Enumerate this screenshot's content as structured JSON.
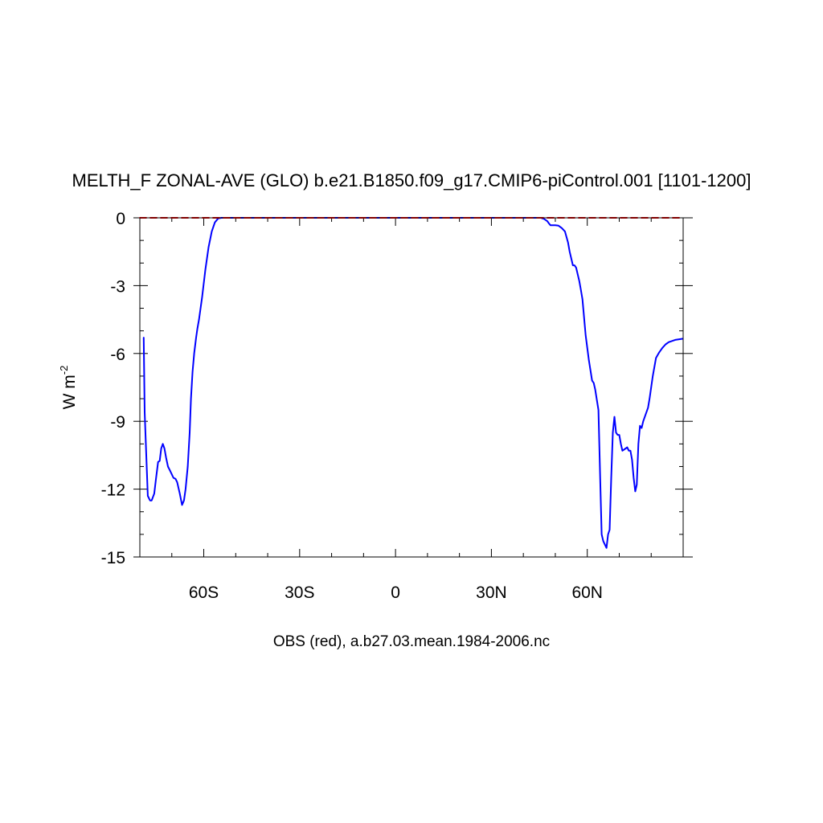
{
  "chart_data": {
    "type": "line",
    "title": "MELTH_F ZONAL-AVE (GLO) b.e21.B1850.f09_g17.CMIP6-piControl.001 [1101-1200]",
    "subtitle": "OBS (red), a.b27.03.mean.1984-2006.nc",
    "ylabel": "W m",
    "ylabel_exponent": "-2",
    "xlim": [
      -80,
      90
    ],
    "ylim": [
      -15,
      0
    ],
    "x_ticks": [
      {
        "value": -60,
        "label": "60S"
      },
      {
        "value": -30,
        "label": "30S"
      },
      {
        "value": 0,
        "label": "0"
      },
      {
        "value": 30,
        "label": "30N"
      },
      {
        "value": 60,
        "label": "60N"
      }
    ],
    "y_ticks": [
      {
        "value": 0,
        "label": "0"
      },
      {
        "value": -3,
        "label": "-3"
      },
      {
        "value": -6,
        "label": "-6"
      },
      {
        "value": -9,
        "label": "-9"
      },
      {
        "value": -12,
        "label": "-12"
      },
      {
        "value": -15,
        "label": "-15"
      }
    ],
    "series": [
      {
        "color": "#0000ff",
        "dashed": false,
        "x": [
          -78.8,
          -78.5,
          -77.5,
          -76.8,
          -76.3,
          -75.5,
          -75.0,
          -74.3,
          -73.8,
          -73.3,
          -72.8,
          -72.3,
          -71.8,
          -71.2,
          -70.5,
          -69.5,
          -68.8,
          -68.3,
          -67.5,
          -66.8,
          -66.2,
          -65.7,
          -65.0,
          -64.4,
          -64.0,
          -63.5,
          -63.0,
          -62.4,
          -62.0,
          -61.5,
          -60.5,
          -59.5,
          -58.5,
          -57.5,
          -56.5,
          -55.5,
          -54.5,
          -54.0,
          -53.5,
          -53.0,
          -52.5,
          -52.0,
          -51.5,
          -51.0,
          -50.0,
          -40.0,
          0.0,
          40.0,
          45.5,
          46.5,
          47.5,
          48.0,
          48.5,
          50.0,
          51.0,
          52.0,
          53.0,
          54.0,
          54.5,
          55.5,
          56.0,
          56.5,
          57.5,
          58.0,
          58.5,
          59.5,
          60.5,
          61.5,
          62.0,
          62.5,
          63.5,
          64.0,
          64.5,
          65.0,
          66.0,
          66.5,
          67.0,
          67.5,
          68.0,
          68.5,
          69.0,
          69.5,
          70.0,
          70.5,
          71.0,
          72.0,
          72.5,
          73.0,
          73.5,
          74.0,
          74.5,
          75.0,
          75.5,
          76.0,
          76.5,
          77.0,
          77.5,
          78.5,
          79.0,
          79.5,
          80.0,
          80.5,
          81.5,
          82.5,
          83.5,
          84.5,
          85.5,
          86.5,
          87.5,
          89.8
        ],
        "y": [
          -5.3,
          -8.6,
          -12.3,
          -12.5,
          -12.5,
          -12.2,
          -11.6,
          -10.8,
          -10.75,
          -10.2,
          -10.0,
          -10.2,
          -10.6,
          -11.0,
          -11.2,
          -11.5,
          -11.55,
          -11.7,
          -12.2,
          -12.7,
          -12.5,
          -12.0,
          -11.0,
          -9.5,
          -8.0,
          -6.8,
          -6.0,
          -5.3,
          -4.9,
          -4.5,
          -3.5,
          -2.3,
          -1.3,
          -0.6,
          -0.2,
          -0.03,
          0.0,
          0.0,
          0.0,
          0.0,
          0.0,
          0.0,
          0.0,
          0.0,
          0.0,
          0.0,
          0.0,
          0.0,
          0.0,
          -0.05,
          -0.15,
          -0.25,
          -0.33,
          -0.33,
          -0.35,
          -0.45,
          -0.6,
          -1.1,
          -1.5,
          -2.1,
          -2.1,
          -2.2,
          -2.8,
          -3.2,
          -3.6,
          -5.2,
          -6.3,
          -7.2,
          -7.3,
          -7.6,
          -8.5,
          -11.3,
          -14.0,
          -14.3,
          -14.6,
          -14.0,
          -13.8,
          -11.5,
          -9.5,
          -8.8,
          -9.5,
          -9.6,
          -9.6,
          -10.0,
          -10.3,
          -10.2,
          -10.15,
          -10.3,
          -10.3,
          -10.7,
          -11.5,
          -12.1,
          -11.8,
          -10.0,
          -9.2,
          -9.3,
          -9.0,
          -8.6,
          -8.4,
          -8.0,
          -7.5,
          -7.0,
          -6.2,
          -5.95,
          -5.75,
          -5.6,
          -5.5,
          -5.45,
          -5.4,
          -5.35
        ]
      },
      {
        "color": "#ff0000",
        "dashed": true,
        "x": [
          -80,
          90
        ],
        "y": [
          0,
          0
        ]
      }
    ]
  }
}
